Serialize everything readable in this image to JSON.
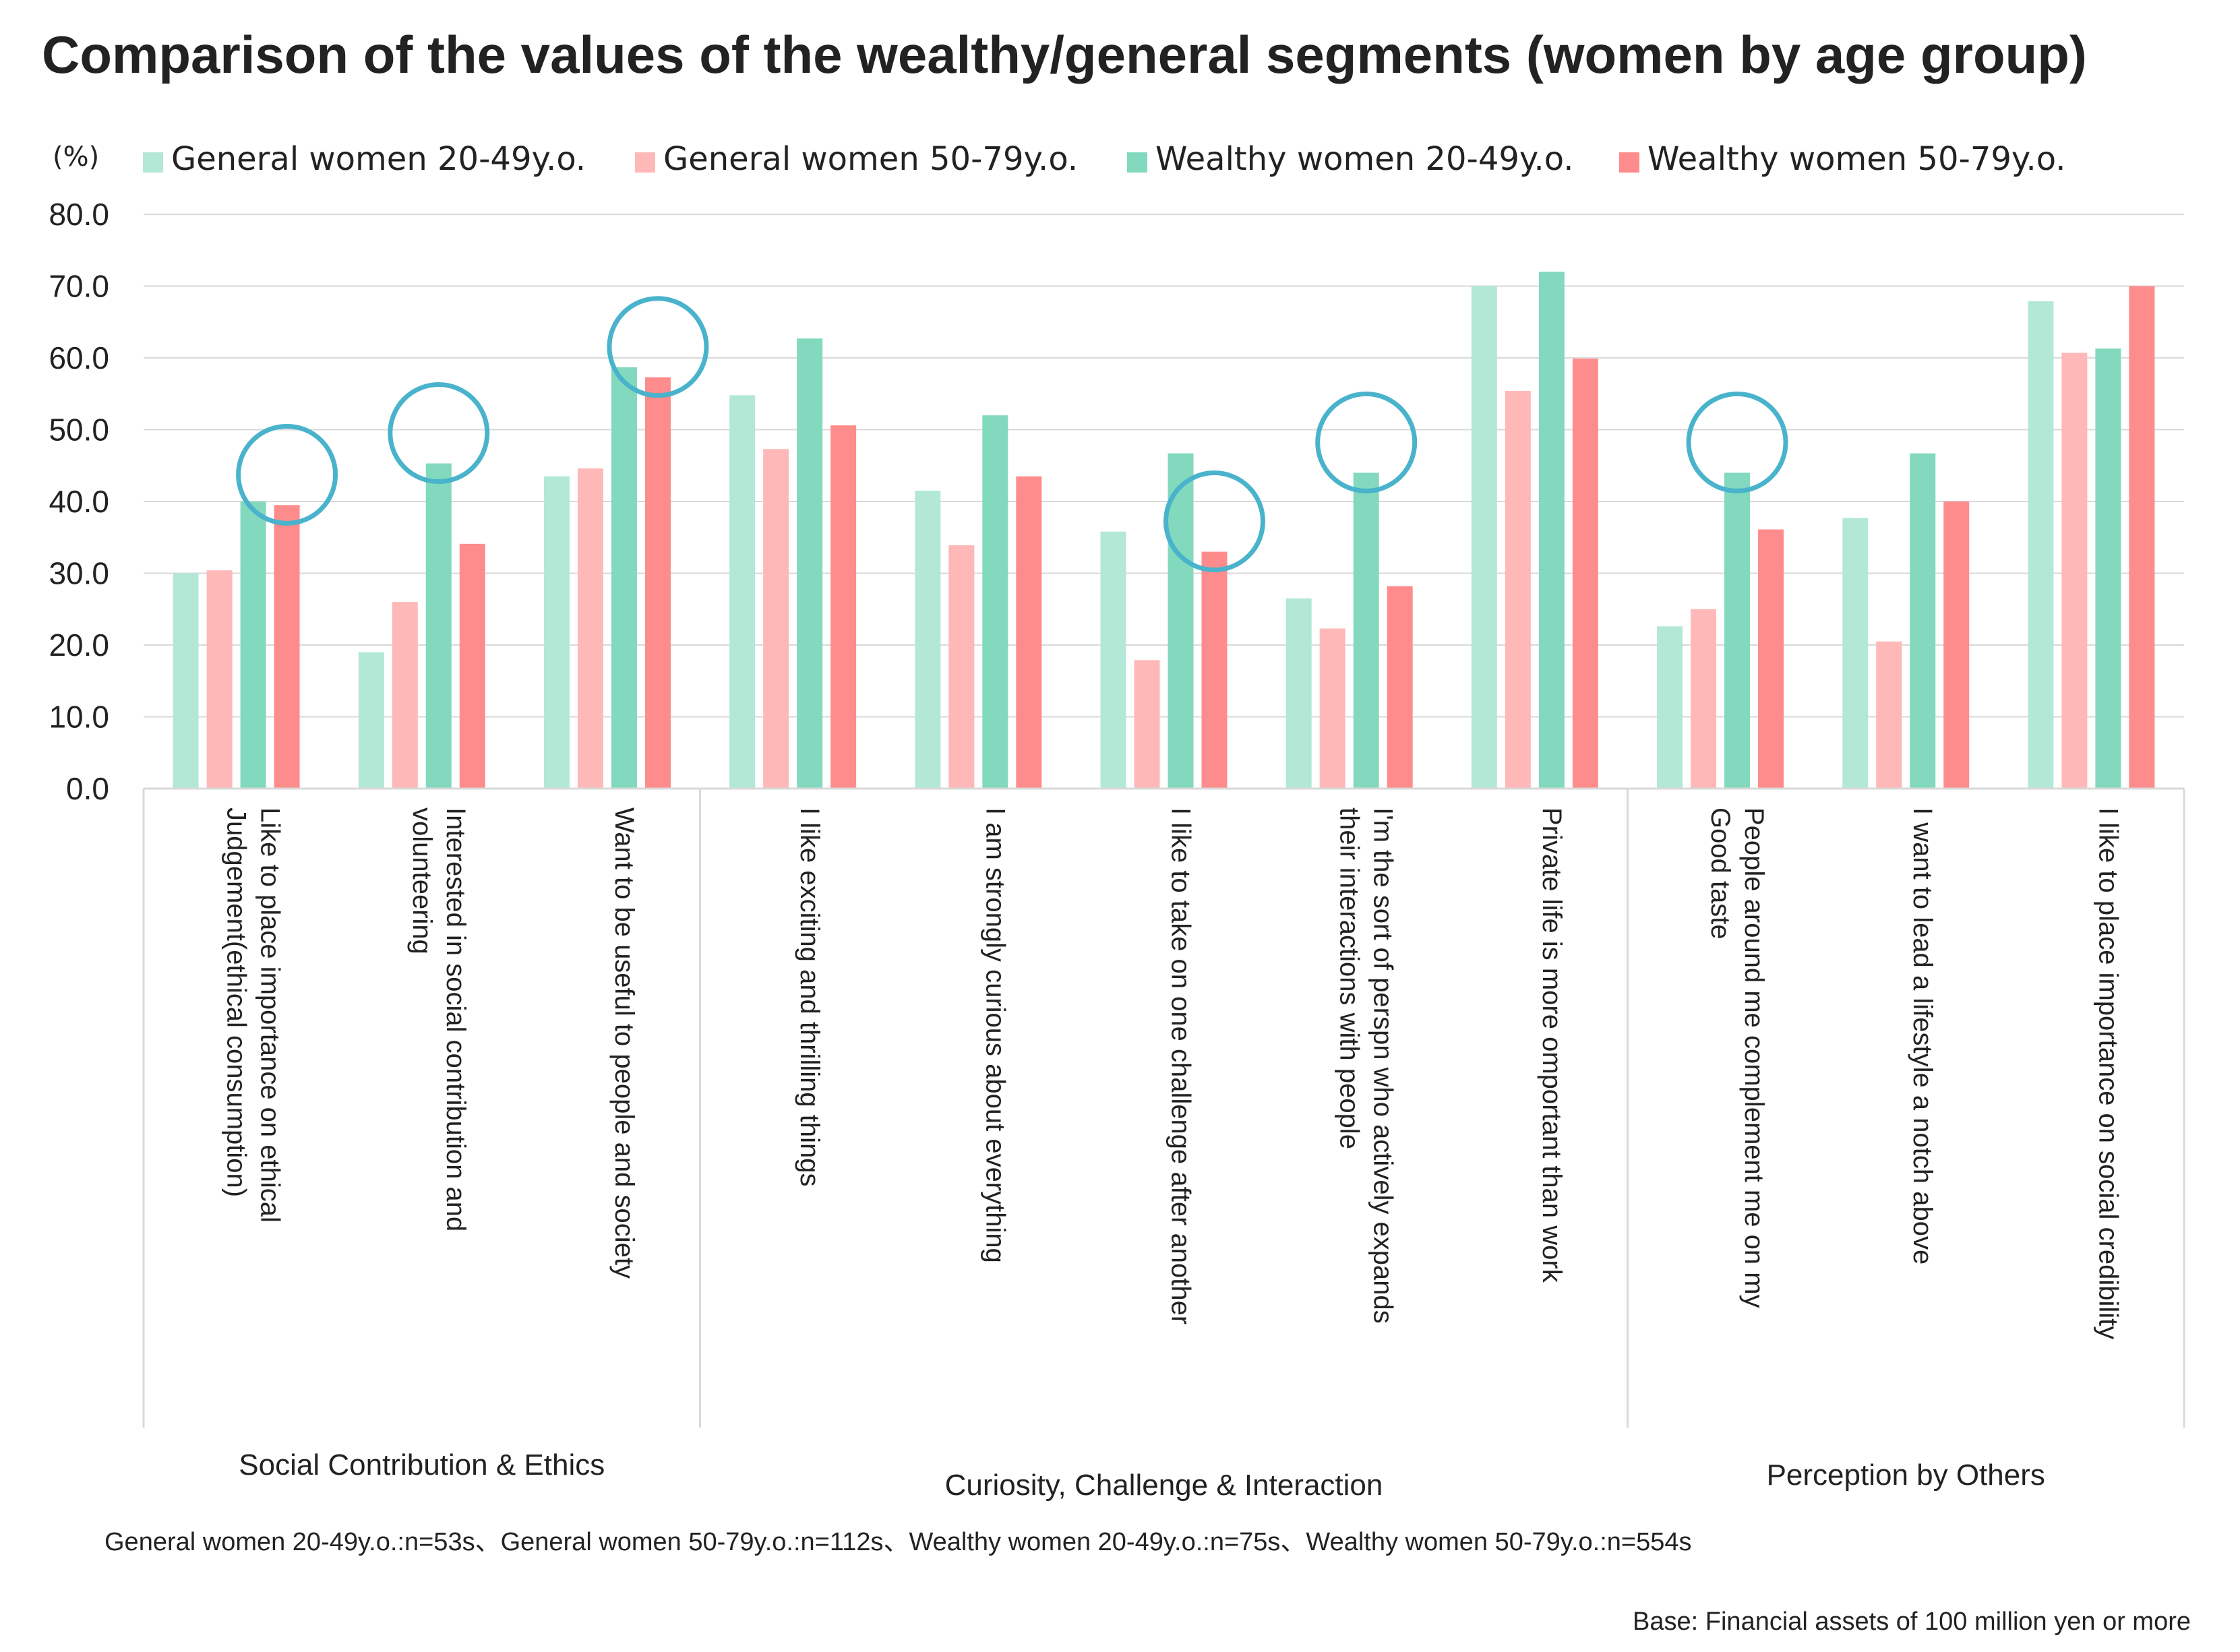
{
  "chart_data": {
    "type": "bar",
    "title": "Comparison of the values of the wealthy/general segments (women by age group)",
    "y_unit": "(%)",
    "ylim": [
      0,
      80
    ],
    "yticks": [
      "0.0",
      "10.0",
      "20.0",
      "30.0",
      "40.0",
      "50.0",
      "60.0",
      "70.0",
      "80.0"
    ],
    "grid": true,
    "legend_position": "top",
    "categories": [
      "Like to place importance on ethical Judgement(ethical consumption)",
      "Interested in social contribution and volunteering",
      "Want to be useful to people and society",
      "I like exciting and thrilling things",
      "I am strongly curious about everything",
      "I like to take on one challenge after another",
      "I'm the sort of perspn who actively expands their interactions with people",
      "Private life is more omportant than work",
      "People around me complement me on my Good taste",
      "I want to lead a lifestyle a notch above",
      "I like to place importance on social credibility"
    ],
    "category_lines": [
      [
        "Like to place importance on ethical",
        "Judgement(ethical consumption)"
      ],
      [
        "Interested in social contribution and",
        "volunteering"
      ],
      [
        "Want to be useful to people and society"
      ],
      [
        "I like exciting and thrilling things"
      ],
      [
        "I am strongly curious about everything"
      ],
      [
        "I like to take on one challenge after another"
      ],
      [
        "I'm the sort of perspn who actively expands",
        "their interactions with people"
      ],
      [
        "Private life is more omportant than work"
      ],
      [
        "People around me complement me on my",
        "Good taste"
      ],
      [
        "I want to lead a lifestyle a notch above"
      ],
      [
        "I like to place importance on social credibility"
      ]
    ],
    "groups": [
      {
        "label": "Social Contribution & Ethics",
        "start": 0,
        "end": 2
      },
      {
        "label": "Curiosity, Challenge & Interaction",
        "start": 3,
        "end": 7
      },
      {
        "label": "Perception by Others",
        "start": 8,
        "end": 10
      }
    ],
    "series": [
      {
        "name": "General women 20-49y.o.",
        "color": "#b3e8d6",
        "values": [
          30.0,
          19.0,
          43.5,
          54.8,
          41.5,
          35.8,
          26.5,
          70.0,
          22.6,
          37.7,
          67.9
        ]
      },
      {
        "name": "General women 50-79y.o.",
        "color": "#ffb8b8",
        "values": [
          30.4,
          26.0,
          44.6,
          47.3,
          33.9,
          17.9,
          22.3,
          55.4,
          25.0,
          20.5,
          60.7
        ]
      },
      {
        "name": "Wealthy women 20-49y.o.",
        "color": "#82d9bd",
        "values": [
          40.0,
          45.3,
          58.7,
          62.7,
          52.0,
          46.7,
          44.0,
          72.0,
          44.0,
          46.7,
          61.3
        ]
      },
      {
        "name": "Wealthy women 50-79y.o.",
        "color": "#ff8c8c",
        "values": [
          39.5,
          34.1,
          57.3,
          50.6,
          43.5,
          33.0,
          28.2,
          59.9,
          36.1,
          40.0,
          70.0
        ]
      }
    ],
    "highlights": [
      {
        "category": 0,
        "series": 3
      },
      {
        "category": 1,
        "series": 2
      },
      {
        "category": 2,
        "series": 3
      },
      {
        "category": 5,
        "series": 3
      },
      {
        "category": 6,
        "series": 2
      },
      {
        "category": 8,
        "series": 2
      }
    ],
    "highlight_color": "#4ab3cc",
    "sample_note": "General women 20-49y.o.:n=53s、General women 50-79y.o.:n=112s、Wealthy women 20-49y.o.:n=75s、Wealthy women 50-79y.o.:n=554s",
    "base_note": "Base: Financial assets of 100 million yen or more"
  }
}
